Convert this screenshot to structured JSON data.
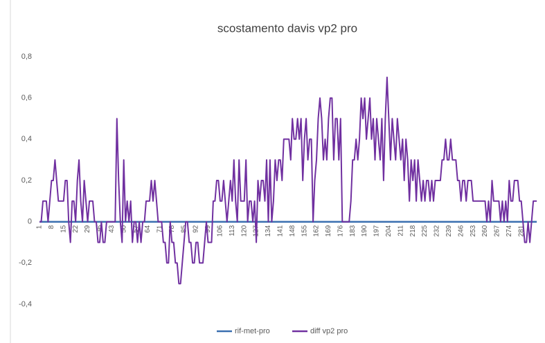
{
  "chart_data": {
    "type": "line",
    "title": "scostamento davis vp2 pro",
    "x": [
      1,
      2,
      3,
      4,
      5,
      6,
      7,
      8,
      9,
      10,
      11,
      12,
      13,
      14,
      15,
      16,
      17,
      18,
      19,
      20,
      21,
      22,
      23,
      24,
      25,
      26,
      27,
      28,
      29,
      30,
      31,
      32,
      33,
      34,
      35,
      36,
      37,
      38,
      39,
      40,
      41,
      42,
      43,
      44,
      45,
      46,
      47,
      48,
      49,
      50,
      51,
      52,
      53,
      54,
      55,
      56,
      57,
      58,
      59,
      60,
      61,
      62,
      63,
      64,
      65,
      66,
      67,
      68,
      69,
      70,
      71,
      72,
      73,
      74,
      75,
      76,
      77,
      78,
      79,
      80,
      81,
      82,
      83,
      84,
      85,
      86,
      87,
      88,
      89,
      90,
      91,
      92,
      93,
      94,
      95,
      96,
      97,
      98,
      99,
      100,
      101,
      102,
      103,
      104,
      105,
      106,
      107,
      108,
      109,
      110,
      111,
      112,
      113,
      114,
      115,
      116,
      117,
      118,
      119,
      120,
      121,
      122,
      123,
      124,
      125,
      126,
      127,
      128,
      129,
      130,
      131,
      132,
      133,
      134,
      135,
      136,
      137,
      138,
      139,
      140,
      141,
      142,
      143,
      144,
      145,
      146,
      147,
      148,
      149,
      150,
      151,
      152,
      153,
      154,
      155,
      156,
      157,
      158,
      159,
      160,
      161,
      162,
      163,
      164,
      165,
      166,
      167,
      168,
      169,
      170,
      171,
      172,
      173,
      174,
      175,
      176,
      177,
      178,
      179,
      180,
      181,
      182,
      183,
      184,
      185,
      186,
      187,
      188,
      189,
      190,
      191,
      192,
      193,
      194,
      195,
      196,
      197,
      198,
      199,
      200,
      201,
      202,
      203,
      204,
      205,
      206,
      207,
      208,
      209,
      210,
      211,
      212,
      213,
      214,
      215,
      216,
      217,
      218,
      219,
      220,
      221,
      222,
      223,
      224,
      225,
      226,
      227,
      228,
      229,
      230,
      231,
      232,
      233,
      234,
      235,
      236,
      237,
      238,
      239,
      240,
      241,
      242,
      243,
      244,
      245,
      246,
      247,
      248,
      249,
      250,
      251,
      252,
      253,
      254,
      255,
      256,
      257,
      258,
      259,
      260,
      261,
      262,
      263,
      264,
      265,
      266,
      267,
      268,
      269,
      270,
      271,
      272,
      273,
      274,
      275,
      276,
      277,
      278,
      279,
      280,
      281,
      282,
      283,
      284,
      285,
      286,
      287,
      288,
      289,
      290
    ],
    "series": [
      {
        "name": "rif-met-pro",
        "color": "#3a6fb0",
        "values": [
          0,
          0,
          0,
          0,
          0,
          0,
          0,
          0,
          0,
          0,
          0,
          0,
          0,
          0,
          0,
          0,
          0,
          0,
          0,
          0,
          0,
          0,
          0,
          0,
          0,
          0,
          0,
          0,
          0,
          0,
          0,
          0,
          0,
          0,
          0,
          0,
          0,
          0,
          0,
          0,
          0,
          0,
          0,
          0,
          0,
          0,
          0,
          0,
          0,
          0,
          0,
          0,
          0,
          0,
          0,
          0,
          0,
          0,
          0,
          0,
          0,
          0,
          0,
          0,
          0,
          0,
          0,
          0,
          0,
          0,
          0,
          0,
          0,
          0,
          0,
          0,
          0,
          0,
          0,
          0,
          0,
          0,
          0,
          0,
          0,
          0,
          0,
          0,
          0,
          0,
          0,
          0,
          0,
          0,
          0,
          0,
          0,
          0,
          0,
          0,
          0,
          0,
          0,
          0,
          0,
          0,
          0,
          0,
          0,
          0,
          0,
          0,
          0,
          0,
          0,
          0,
          0,
          0,
          0,
          0,
          0,
          0,
          0,
          0,
          0,
          0,
          0,
          0,
          0,
          0,
          0,
          0,
          0,
          0,
          0,
          0,
          0,
          0,
          0,
          0,
          0,
          0,
          0,
          0,
          0,
          0,
          0,
          0,
          0,
          0,
          0,
          0,
          0,
          0,
          0,
          0,
          0,
          0,
          0,
          0,
          0,
          0,
          0,
          0,
          0,
          0,
          0,
          0,
          0,
          0,
          0,
          0,
          0,
          0,
          0,
          0,
          0,
          0,
          0,
          0,
          0,
          0,
          0,
          0,
          0,
          0,
          0,
          0,
          0,
          0,
          0,
          0,
          0,
          0,
          0,
          0,
          0,
          0,
          0,
          0,
          0,
          0,
          0,
          0,
          0,
          0,
          0,
          0,
          0,
          0,
          0,
          0,
          0,
          0,
          0,
          0,
          0,
          0,
          0,
          0,
          0,
          0,
          0,
          0,
          0,
          0,
          0,
          0,
          0,
          0,
          0,
          0,
          0,
          0,
          0,
          0,
          0,
          0,
          0,
          0,
          0,
          0,
          0,
          0,
          0,
          0,
          0,
          0,
          0,
          0,
          0,
          0,
          0,
          0,
          0,
          0,
          0,
          0,
          0,
          0,
          0,
          0,
          0,
          0,
          0,
          0,
          0,
          0,
          0,
          0,
          0,
          0,
          0,
          0,
          0,
          0,
          0,
          0,
          0,
          0,
          0,
          0,
          0,
          0,
          0,
          0,
          0,
          0,
          0,
          0
        ]
      },
      {
        "name": "diff vp2 pro",
        "color": "#7030a0",
        "values": [
          0,
          0,
          0.1,
          0.1,
          0.1,
          0,
          0.1,
          0.2,
          0.2,
          0.3,
          0.2,
          0.1,
          0.1,
          0.1,
          0.1,
          0.2,
          0.2,
          0,
          -0.1,
          0.1,
          0.1,
          0,
          0.2,
          0.3,
          0.1,
          0,
          0.2,
          0.1,
          0,
          0.1,
          0.1,
          0.1,
          0,
          0,
          -0.1,
          -0.1,
          0,
          -0.1,
          -0.1,
          0,
          0,
          0,
          0,
          0,
          0,
          0.5,
          0.2,
          0,
          -0.1,
          0.3,
          0,
          0.1,
          0,
          0.1,
          -0.1,
          0,
          0,
          -0.1,
          0,
          -0.1,
          0,
          0,
          0.1,
          0.1,
          0.1,
          0.2,
          0.1,
          0.2,
          0.1,
          0,
          0,
          0,
          -0.1,
          -0.1,
          -0.2,
          -0.2,
          0,
          -0.1,
          -0.1,
          -0.2,
          -0.2,
          -0.3,
          -0.3,
          -0.2,
          -0.1,
          0,
          0,
          -0.1,
          -0.1,
          -0.2,
          -0.2,
          -0.1,
          -0.1,
          -0.2,
          -0.2,
          -0.2,
          -0.1,
          0,
          -0.1,
          -0.1,
          -0.1,
          0.1,
          0.1,
          0.2,
          0.2,
          0.1,
          0.1,
          0.2,
          0.1,
          0,
          0.1,
          0.2,
          0.1,
          0.3,
          0.1,
          0,
          0.3,
          0.1,
          0.1,
          0.1,
          0.3,
          0,
          0.1,
          0.1,
          0,
          0.1,
          -0.1,
          0.2,
          0.1,
          0.2,
          0.2,
          0.1,
          0.3,
          0,
          0.3,
          0,
          0.1,
          0.3,
          0.2,
          0.3,
          0.3,
          0.2,
          0.4,
          0.4,
          0.4,
          0.4,
          0.3,
          0.5,
          0.4,
          0.4,
          0.5,
          0.4,
          0.5,
          0.2,
          0.4,
          0.5,
          0.3,
          0.4,
          0.4,
          0,
          0.2,
          0.3,
          0.5,
          0.6,
          0.5,
          0.3,
          0.4,
          0.3,
          0.5,
          0.6,
          0.6,
          0.3,
          0.5,
          0.5,
          0.3,
          0.5,
          0,
          0,
          0,
          0,
          0,
          0.1,
          0.3,
          0.3,
          0.4,
          0.3,
          0.4,
          0.6,
          0.5,
          0.6,
          0.4,
          0.5,
          0.6,
          0.4,
          0.5,
          0.3,
          0.5,
          0.4,
          0.3,
          0.5,
          0.2,
          0.5,
          0.7,
          0.5,
          0.3,
          0.5,
          0.4,
          0.3,
          0.5,
          0.4,
          0.3,
          0.4,
          0.2,
          0.4,
          0.3,
          0.1,
          0.3,
          0.2,
          0.3,
          0.1,
          0.3,
          0.2,
          0.1,
          0.2,
          0.1,
          0.2,
          0.2,
          0.1,
          0.2,
          0.1,
          0.2,
          0.2,
          0.2,
          0.2,
          0.3,
          0.3,
          0.4,
          0.3,
          0.3,
          0.4,
          0.3,
          0.3,
          0.3,
          0.2,
          0.2,
          0.1,
          0.2,
          0.2,
          0.1,
          0.2,
          0.2,
          0.2,
          0.1,
          0.1,
          0.1,
          0.1,
          0.1,
          0.1,
          0.1,
          0.1,
          0,
          0.1,
          0,
          0.2,
          0.1,
          0.1,
          0.1,
          0.1,
          0,
          0.1,
          0,
          0.1,
          0,
          0.2,
          0.1,
          0.1,
          0.2,
          0.2,
          0.2,
          0.1,
          0.1,
          0,
          -0.1,
          -0.1,
          0,
          -0.1,
          0,
          0.1,
          0.1,
          0.1
        ]
      }
    ],
    "xlim": [
      1,
      294
    ],
    "xticks": [
      1,
      8,
      15,
      22,
      29,
      36,
      43,
      50,
      57,
      64,
      71,
      78,
      85,
      92,
      99,
      106,
      113,
      120,
      127,
      134,
      141,
      148,
      155,
      162,
      169,
      176,
      183,
      190,
      197,
      204,
      211,
      218,
      225,
      232,
      239,
      246,
      253,
      260,
      267,
      274,
      281
    ],
    "ylim": [
      -0.4,
      0.8
    ],
    "yticks": [
      {
        "value": -0.4,
        "label": "-0,4"
      },
      {
        "value": -0.2,
        "label": "-0,2"
      },
      0,
      {
        "value": 0.2,
        "label": "0,2"
      },
      {
        "value": 0.4,
        "label": "0,4"
      },
      {
        "value": 0.6,
        "label": "0,6"
      },
      {
        "value": 0.8,
        "label": "0,8"
      }
    ],
    "grid": false,
    "legend": "bottom"
  }
}
